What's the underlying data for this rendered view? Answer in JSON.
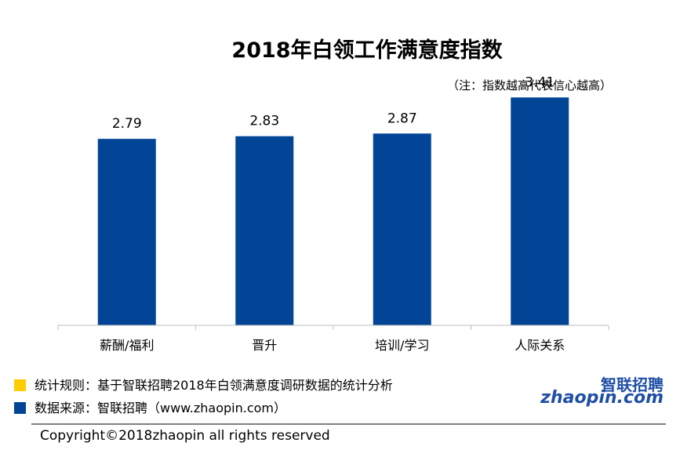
{
  "chart_data": {
    "type": "bar",
    "title": "2018年白领工作满意度指数",
    "subtitle": "（注：指数越高代表信心越高）",
    "categories": [
      "薪酬/福利",
      "晋升",
      "培训/学习",
      "人际关系"
    ],
    "values": [
      2.79,
      2.83,
      2.87,
      3.41
    ],
    "value_labels": [
      "2.79",
      "2.83",
      "2.87",
      "3.41"
    ],
    "ylim": [
      0,
      4
    ],
    "grid": false,
    "bar_color": "#024597"
  },
  "footnotes": {
    "rule": "统计规则：基于智联招聘2018年白领满意度调研数据的统计分析",
    "source": "数据来源：智联招聘（www.zhaopin.com）",
    "rule_color": "#ffcc00",
    "source_color": "#024597"
  },
  "copyright": "Copyright©2018zhaopin all rights reserved",
  "logo": {
    "cn": "智联招聘",
    "en": "zhaopin.com"
  }
}
